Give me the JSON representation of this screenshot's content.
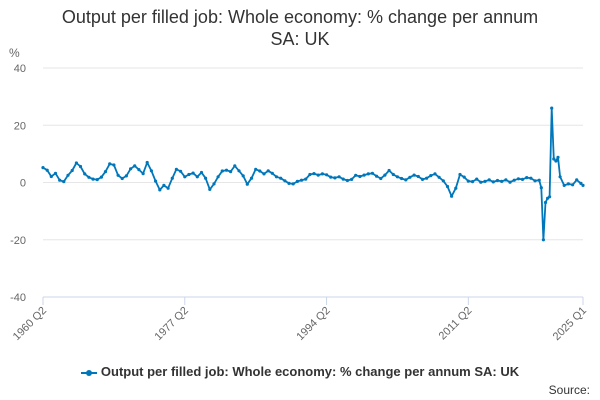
{
  "chart_data": {
    "type": "line",
    "title": "Output per filled job: Whole economy: % change per annum",
    "subtitle": "SA: UK",
    "ylabel": "%",
    "xlabel": "",
    "ylim": [
      -40,
      40
    ],
    "y_ticks": [
      -40,
      -20,
      0,
      20,
      40
    ],
    "x_tick_labels": [
      "1960 Q2",
      "1977 Q2",
      "1994 Q2",
      "2011 Q2",
      "2025 Q1"
    ],
    "grid": "horizontal",
    "legend_position": "bottom",
    "series": [
      {
        "name": "Output per filled job: Whole economy: % change per annum SA: UK",
        "color": "#0077bb",
        "points": [
          [
            "1960 Q2",
            5.2
          ],
          [
            "1960 Q4",
            4.3
          ],
          [
            "1961 Q2",
            2.1
          ],
          [
            "1961 Q4",
            3.2
          ],
          [
            "1962 Q2",
            0.8
          ],
          [
            "1962 Q4",
            0.3
          ],
          [
            "1963 Q2",
            2.5
          ],
          [
            "1963 Q4",
            4.2
          ],
          [
            "1964 Q2",
            6.8
          ],
          [
            "1964 Q4",
            5.6
          ],
          [
            "1965 Q2",
            3.0
          ],
          [
            "1965 Q4",
            1.8
          ],
          [
            "1966 Q2",
            1.2
          ],
          [
            "1966 Q4",
            1.0
          ],
          [
            "1967 Q2",
            1.9
          ],
          [
            "1967 Q4",
            3.8
          ],
          [
            "1968 Q2",
            6.5
          ],
          [
            "1968 Q4",
            6.1
          ],
          [
            "1969 Q2",
            2.5
          ],
          [
            "1969 Q4",
            1.4
          ],
          [
            "1970 Q2",
            2.3
          ],
          [
            "1970 Q4",
            4.8
          ],
          [
            "1971 Q2",
            5.8
          ],
          [
            "1971 Q4",
            4.5
          ],
          [
            "1972 Q2",
            3.1
          ],
          [
            "1972 Q4",
            7.0
          ],
          [
            "1973 Q2",
            4.1
          ],
          [
            "1973 Q4",
            0.5
          ],
          [
            "1974 Q2",
            -2.6
          ],
          [
            "1974 Q4",
            -1.0
          ],
          [
            "1975 Q2",
            -2.0
          ],
          [
            "1975 Q4",
            1.5
          ],
          [
            "1976 Q2",
            4.6
          ],
          [
            "1976 Q4",
            3.9
          ],
          [
            "1977 Q2",
            2.0
          ],
          [
            "1977 Q4",
            2.8
          ],
          [
            "1978 Q2",
            3.3
          ],
          [
            "1978 Q4",
            2.0
          ],
          [
            "1979 Q2",
            3.5
          ],
          [
            "1979 Q4",
            1.5
          ],
          [
            "1980 Q2",
            -2.4
          ],
          [
            "1980 Q4",
            -0.5
          ],
          [
            "1981 Q2",
            2.0
          ],
          [
            "1981 Q4",
            4.0
          ],
          [
            "1982 Q2",
            4.3
          ],
          [
            "1982 Q4",
            3.8
          ],
          [
            "1983 Q2",
            5.8
          ],
          [
            "1983 Q4",
            4.1
          ],
          [
            "1984 Q2",
            2.3
          ],
          [
            "1984 Q4",
            -0.6
          ],
          [
            "1985 Q2",
            1.5
          ],
          [
            "1985 Q4",
            4.6
          ],
          [
            "1986 Q2",
            4.0
          ],
          [
            "1986 Q4",
            3.0
          ],
          [
            "1987 Q2",
            4.1
          ],
          [
            "1987 Q4",
            3.2
          ],
          [
            "1988 Q2",
            2.0
          ],
          [
            "1988 Q4",
            1.5
          ],
          [
            "1989 Q2",
            0.6
          ],
          [
            "1989 Q4",
            -0.3
          ],
          [
            "1990 Q2",
            -0.5
          ],
          [
            "1990 Q4",
            0.4
          ],
          [
            "1991 Q2",
            0.8
          ],
          [
            "1991 Q4",
            1.2
          ],
          [
            "1992 Q2",
            2.8
          ],
          [
            "1992 Q4",
            3.1
          ],
          [
            "1993 Q2",
            2.6
          ],
          [
            "1993 Q4",
            3.0
          ],
          [
            "1994 Q2",
            2.7
          ],
          [
            "1994 Q4",
            1.9
          ],
          [
            "1995 Q2",
            1.6
          ],
          [
            "1995 Q4",
            2.0
          ],
          [
            "1996 Q2",
            1.2
          ],
          [
            "1996 Q4",
            0.7
          ],
          [
            "1997 Q2",
            1.1
          ],
          [
            "1997 Q4",
            2.5
          ],
          [
            "1998 Q2",
            2.1
          ],
          [
            "1998 Q4",
            2.6
          ],
          [
            "1999 Q2",
            3.0
          ],
          [
            "1999 Q4",
            3.2
          ],
          [
            "2000 Q2",
            2.2
          ],
          [
            "2000 Q4",
            1.4
          ],
          [
            "2001 Q2",
            2.6
          ],
          [
            "2001 Q4",
            4.2
          ],
          [
            "2002 Q2",
            2.8
          ],
          [
            "2002 Q4",
            2.0
          ],
          [
            "2003 Q2",
            1.4
          ],
          [
            "2003 Q4",
            0.9
          ],
          [
            "2004 Q2",
            1.8
          ],
          [
            "2004 Q4",
            2.6
          ],
          [
            "2005 Q2",
            2.1
          ],
          [
            "2005 Q4",
            1.1
          ],
          [
            "2006 Q2",
            1.5
          ],
          [
            "2006 Q4",
            2.4
          ],
          [
            "2007 Q2",
            3.0
          ],
          [
            "2007 Q4",
            1.8
          ],
          [
            "2008 Q2",
            0.6
          ],
          [
            "2008 Q4",
            -1.4
          ],
          [
            "2009 Q2",
            -4.8
          ],
          [
            "2009 Q4",
            -2.0
          ],
          [
            "2010 Q2",
            2.8
          ],
          [
            "2010 Q4",
            1.9
          ],
          [
            "2011 Q2",
            0.5
          ],
          [
            "2011 Q4",
            0.3
          ],
          [
            "2012 Q2",
            1.2
          ],
          [
            "2012 Q4",
            0.1
          ],
          [
            "2013 Q2",
            0.4
          ],
          [
            "2013 Q4",
            0.9
          ],
          [
            "2014 Q2",
            0.2
          ],
          [
            "2014 Q4",
            0.7
          ],
          [
            "2015 Q2",
            0.4
          ],
          [
            "2015 Q4",
            0.9
          ],
          [
            "2016 Q2",
            0.1
          ],
          [
            "2016 Q4",
            0.8
          ],
          [
            "2017 Q2",
            1.3
          ],
          [
            "2017 Q4",
            1.1
          ],
          [
            "2018 Q2",
            1.7
          ],
          [
            "2018 Q4",
            1.5
          ],
          [
            "2019 Q2",
            0.6
          ],
          [
            "2019 Q4",
            0.8
          ],
          [
            "2020 Q1",
            -1.8
          ],
          [
            "2020 Q2",
            -20.0
          ],
          [
            "2020 Q3",
            -7.0
          ],
          [
            "2020 Q4",
            -5.5
          ],
          [
            "2021 Q1",
            -5.0
          ],
          [
            "2021 Q2",
            26.0
          ],
          [
            "2021 Q3",
            8.2
          ],
          [
            "2021 Q4",
            7.5
          ],
          [
            "2022 Q1",
            8.8
          ],
          [
            "2022 Q2",
            2.0
          ],
          [
            "2022 Q4",
            -1.0
          ],
          [
            "2023 Q2",
            -0.5
          ],
          [
            "2023 Q4",
            -0.8
          ],
          [
            "2024 Q2",
            0.9
          ],
          [
            "2024 Q4",
            -0.3
          ],
          [
            "2025 Q1",
            -1.0
          ]
        ]
      }
    ],
    "source_label": "Source:"
  }
}
